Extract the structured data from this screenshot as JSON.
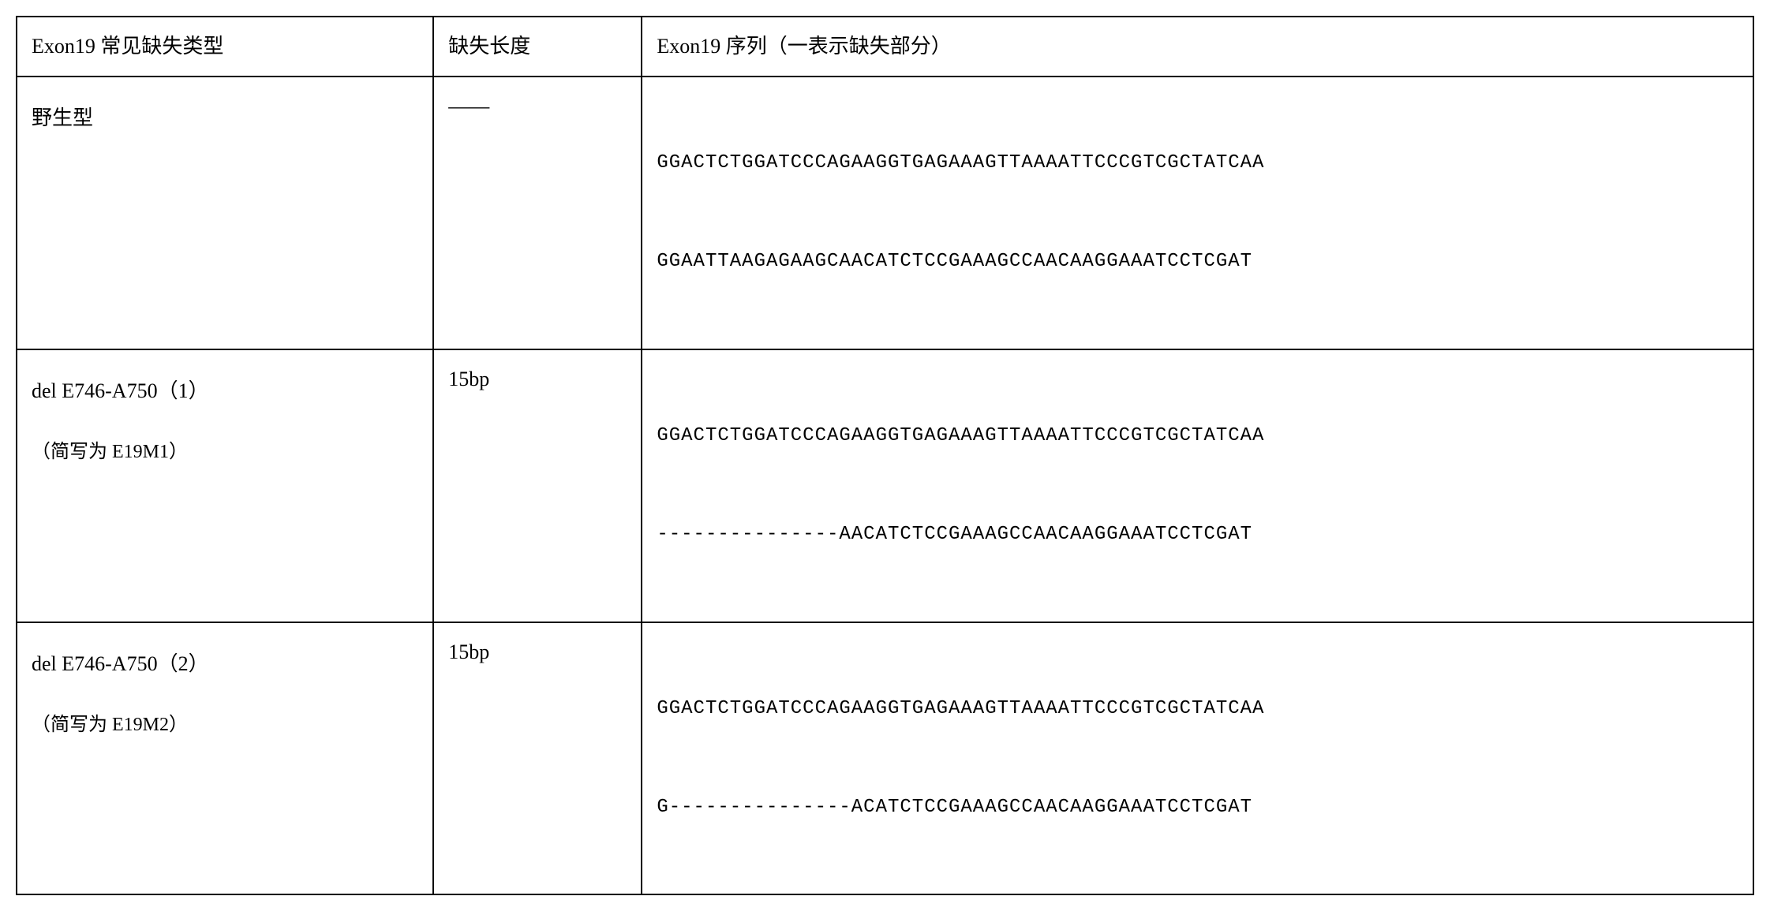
{
  "table": {
    "headers": {
      "col1": "Exon19 常见缺失类型",
      "col2": "缺失长度",
      "col3": "Exon19 序列（一表示缺失部分）"
    },
    "rows": [
      {
        "type_line1": "野生型",
        "type_line2": "",
        "length": "――",
        "seq_line1": "GGACTCTGGATCCCAGAAGGTGAGAAAGTTAAAATTCCCGTCGCTATCAA",
        "seq_line2": "GGAATTAAGAGAAGCAACATCTCCGAAAGCCAACAAGGAAATCCTCGAT"
      },
      {
        "type_line1": "del E746-A750（1）",
        "type_line2": "（简写为 E19M1）",
        "length": "15bp",
        "seq_line1": "GGACTCTGGATCCCAGAAGGTGAGAAAGTTAAAATTCCCGTCGCTATCAA",
        "seq_line2": "---------------AACATCTCCGAAAGCCAACAAGGAAATCCTCGAT"
      },
      {
        "type_line1": "del E746-A750（2）",
        "type_line2": "（简写为 E19M2）",
        "length": "15bp",
        "seq_line1": "GGACTCTGGATCCCAGAAGGTGAGAAAGTTAAAATTCCCGTCGCTATCAA",
        "seq_line2": "G---------------ACATCTCCGAAAGCCAACAAGGAAATCCTCGAT"
      }
    ]
  },
  "styling": {
    "border_color": "#000000",
    "border_width": 2,
    "background_color": "#ffffff",
    "text_color": "#000000",
    "header_fontsize": 26,
    "body_fontsize": 26,
    "sequence_fontsize": 24,
    "sequence_font": "monospace",
    "cjk_font": "SimSun",
    "col_widths": [
      "24%",
      "12%",
      "64%"
    ],
    "line_height_sequence": 2.6,
    "cell_padding": "16px 18px"
  }
}
